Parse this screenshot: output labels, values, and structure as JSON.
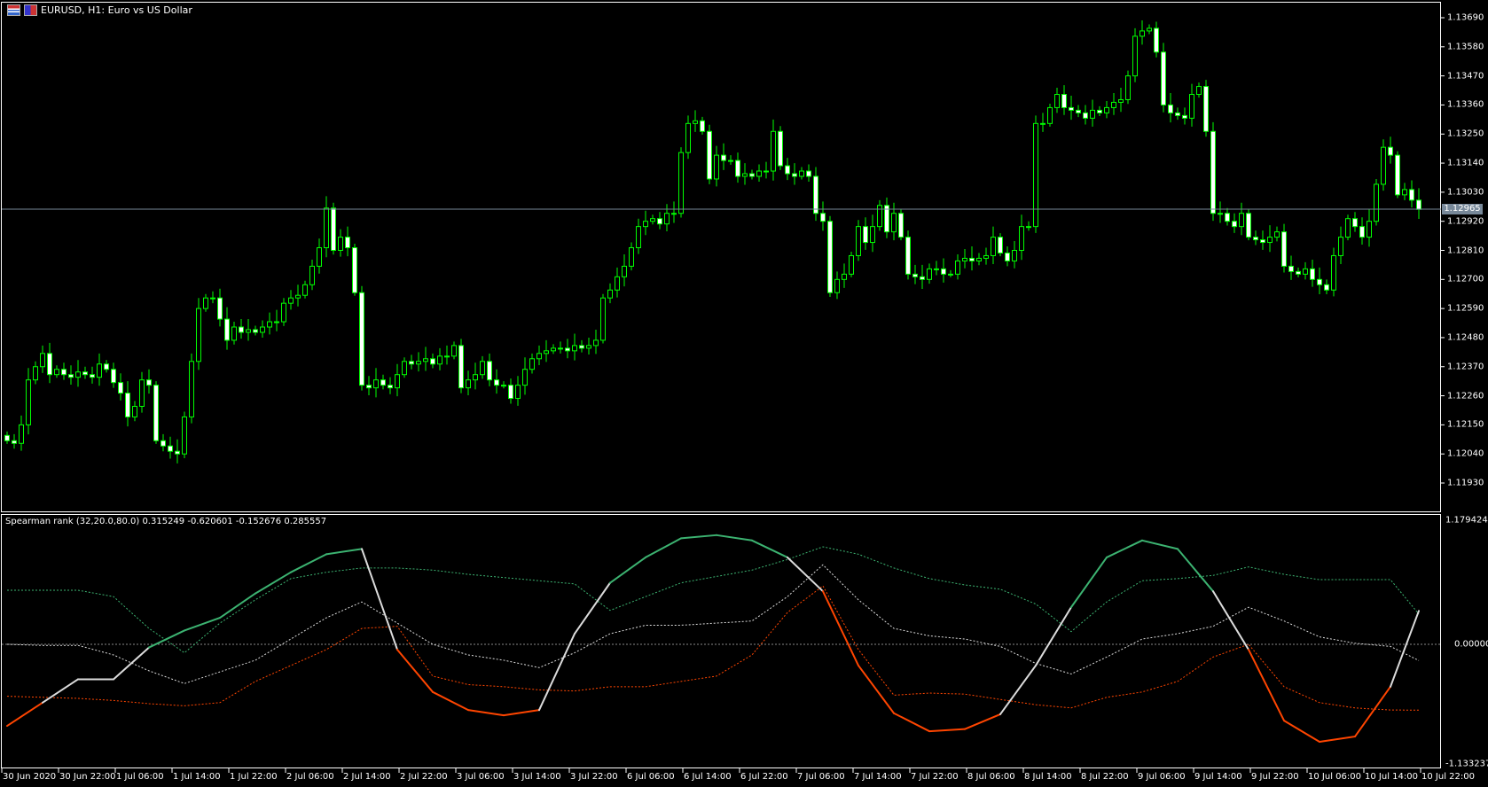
{
  "window": {
    "title": "EURUSD, H1:  Euro vs US Dollar",
    "icons": [
      "chart-window-icon",
      "symbol-flag-icon"
    ]
  },
  "colors": {
    "background": "#000000",
    "bull_candle": "#00ff00",
    "bear_candle_fill": "#ffffff",
    "grid_frame": "#ffffff",
    "price_line": "#778899",
    "spearman_up": "#3cb371",
    "spearman_mid": "#dcdcdc",
    "spearman_down": "#ff4500"
  },
  "price_axis": {
    "labels": [
      "1.13690",
      "1.13580",
      "1.13470",
      "1.13360",
      "1.13250",
      "1.13140",
      "1.13030",
      "1.12920",
      "1.12810",
      "1.12700",
      "1.12590",
      "1.12480",
      "1.12370",
      "1.12260",
      "1.12150",
      "1.12040",
      "1.11930"
    ],
    "current_price": "1.12965"
  },
  "time_axis": {
    "labels": [
      "30 Jun 2020",
      "30 Jun 22:00",
      "1 Jul 06:00",
      "1 Jul 14:00",
      "1 Jul 22:00",
      "2 Jul 06:00",
      "2 Jul 14:00",
      "2 Jul 22:00",
      "3 Jul 06:00",
      "3 Jul 14:00",
      "3 Jul 22:00",
      "6 Jul 06:00",
      "6 Jul 14:00",
      "6 Jul 22:00",
      "7 Jul 06:00",
      "7 Jul 14:00",
      "7 Jul 22:00",
      "8 Jul 06:00",
      "8 Jul 14:00",
      "8 Jul 22:00",
      "9 Jul 06:00",
      "9 Jul 14:00",
      "9 Jul 22:00",
      "10 Jul 06:00",
      "10 Jul 14:00",
      "10 Jul 22:00"
    ]
  },
  "chart_data": [
    {
      "type": "candlestick",
      "symbol": "EURUSD",
      "timeframe": "H1",
      "ylim": [
        1.1188,
        1.1372
      ],
      "closes": [
        1.1209,
        1.1208,
        1.1215,
        1.1232,
        1.1237,
        1.1242,
        1.1234,
        1.1236,
        1.1234,
        1.1233,
        1.1235,
        1.1234,
        1.1233,
        1.1238,
        1.1236,
        1.1231,
        1.1227,
        1.1218,
        1.1222,
        1.1232,
        1.123,
        1.1209,
        1.1207,
        1.1205,
        1.1204,
        1.1218,
        1.1239,
        1.1259,
        1.1263,
        1.1263,
        1.1255,
        1.1247,
        1.1252,
        1.125,
        1.1251,
        1.125,
        1.1252,
        1.1254,
        1.1254,
        1.1261,
        1.1263,
        1.1264,
        1.1268,
        1.1275,
        1.1282,
        1.1297,
        1.1281,
        1.1286,
        1.1282,
        1.1265,
        1.123,
        1.1229,
        1.1232,
        1.123,
        1.1229,
        1.1234,
        1.1239,
        1.1238,
        1.1239,
        1.124,
        1.1238,
        1.1241,
        1.1241,
        1.1245,
        1.1229,
        1.1232,
        1.1234,
        1.1239,
        1.1232,
        1.123,
        1.123,
        1.1225,
        1.123,
        1.1236,
        1.124,
        1.1242,
        1.1243,
        1.1244,
        1.1244,
        1.1243,
        1.1245,
        1.1244,
        1.1245,
        1.1247,
        1.1263,
        1.1266,
        1.1271,
        1.1275,
        1.1282,
        1.129,
        1.1292,
        1.1293,
        1.1291,
        1.1295,
        1.1295,
        1.1318,
        1.1329,
        1.133,
        1.1326,
        1.1308,
        1.1317,
        1.1315,
        1.1315,
        1.1309,
        1.131,
        1.1309,
        1.1311,
        1.1311,
        1.1326,
        1.1313,
        1.131,
        1.1309,
        1.1311,
        1.1309,
        1.1295,
        1.1292,
        1.1265,
        1.127,
        1.1272,
        1.1279,
        1.129,
        1.1284,
        1.129,
        1.1298,
        1.1288,
        1.1295,
        1.1286,
        1.1272,
        1.1271,
        1.127,
        1.1274,
        1.1274,
        1.1272,
        1.1272,
        1.1277,
        1.1278,
        1.1277,
        1.1278,
        1.1279,
        1.1286,
        1.128,
        1.1277,
        1.1281,
        1.129,
        1.129,
        1.1329,
        1.1329,
        1.1335,
        1.134,
        1.1335,
        1.1334,
        1.1333,
        1.1331,
        1.1334,
        1.1333,
        1.1335,
        1.1337,
        1.1338,
        1.1347,
        1.1362,
        1.1364,
        1.1365,
        1.1356,
        1.1336,
        1.1333,
        1.1332,
        1.1331,
        1.134,
        1.1343,
        1.1326,
        1.1295,
        1.1295,
        1.1292,
        1.129,
        1.1295,
        1.1286,
        1.1285,
        1.1284,
        1.1286,
        1.1288,
        1.1275,
        1.1273,
        1.1272,
        1.1274,
        1.127,
        1.1268,
        1.1266,
        1.1279,
        1.1286,
        1.1293,
        1.129,
        1.1286,
        1.1292,
        1.1306,
        1.132,
        1.1317,
        1.1302,
        1.1304,
        1.13,
        1.12965
      ]
    },
    {
      "type": "line",
      "title": "Spearman rank (32,20.0,80.0) 0.315249 -0.620601 -0.152676 0.285557",
      "ylim": [
        -1.133237,
        1.179424
      ],
      "axis_labels": [
        "1.179424",
        "0.000000",
        "-1.133237"
      ],
      "zero_line": 0,
      "series": [
        {
          "role": "main",
          "values": [
            -0.77,
            -0.55,
            -0.33,
            -0.33,
            -0.03,
            0.13,
            0.25,
            0.48,
            0.68,
            0.85,
            0.9,
            -0.05,
            -0.45,
            -0.62,
            -0.67,
            -0.62,
            0.1,
            0.58,
            0.82,
            1.0,
            1.03,
            0.98,
            0.82,
            0.5,
            -0.2,
            -0.65,
            -0.82,
            -0.8,
            -0.66,
            -0.2,
            0.35,
            0.82,
            0.98,
            0.9,
            0.5,
            -0.05,
            -0.72,
            -0.92,
            -0.87,
            -0.4,
            0.315249
          ]
        },
        {
          "role": "upper-level",
          "values": [
            0.51,
            0.51,
            0.51,
            0.45,
            0.15,
            -0.08,
            0.2,
            0.42,
            0.62,
            0.68,
            0.72,
            0.72,
            0.7,
            0.66,
            0.63,
            0.6,
            0.57,
            0.32,
            0.45,
            0.58,
            0.64,
            0.7,
            0.8,
            0.92,
            0.85,
            0.72,
            0.62,
            0.56,
            0.52,
            0.38,
            0.12,
            0.4,
            0.6,
            0.62,
            0.65,
            0.73,
            0.66,
            0.61,
            0.61,
            0.61,
            0.285557
          ]
        },
        {
          "role": "middle-level",
          "values": [
            0.0,
            -0.01,
            -0.01,
            -0.1,
            -0.25,
            -0.37,
            -0.26,
            -0.15,
            0.05,
            0.25,
            0.4,
            0.2,
            0.0,
            -0.1,
            -0.15,
            -0.22,
            -0.08,
            0.1,
            0.18,
            0.18,
            0.2,
            0.22,
            0.45,
            0.75,
            0.42,
            0.15,
            0.08,
            0.05,
            -0.02,
            -0.18,
            -0.28,
            -0.12,
            0.05,
            0.1,
            0.17,
            0.35,
            0.22,
            0.07,
            0.01,
            -0.02,
            -0.152676
          ]
        },
        {
          "role": "lower-level",
          "values": [
            -0.49,
            -0.5,
            -0.51,
            -0.53,
            -0.56,
            -0.58,
            -0.55,
            -0.35,
            -0.2,
            -0.05,
            0.15,
            0.17,
            -0.3,
            -0.38,
            -0.4,
            -0.43,
            -0.44,
            -0.4,
            -0.4,
            -0.35,
            -0.3,
            -0.1,
            0.3,
            0.55,
            -0.05,
            -0.48,
            -0.46,
            -0.47,
            -0.52,
            -0.57,
            -0.6,
            -0.5,
            -0.45,
            -0.35,
            -0.12,
            0.0,
            -0.4,
            -0.55,
            -0.6,
            -0.62,
            -0.620601
          ]
        }
      ]
    }
  ]
}
